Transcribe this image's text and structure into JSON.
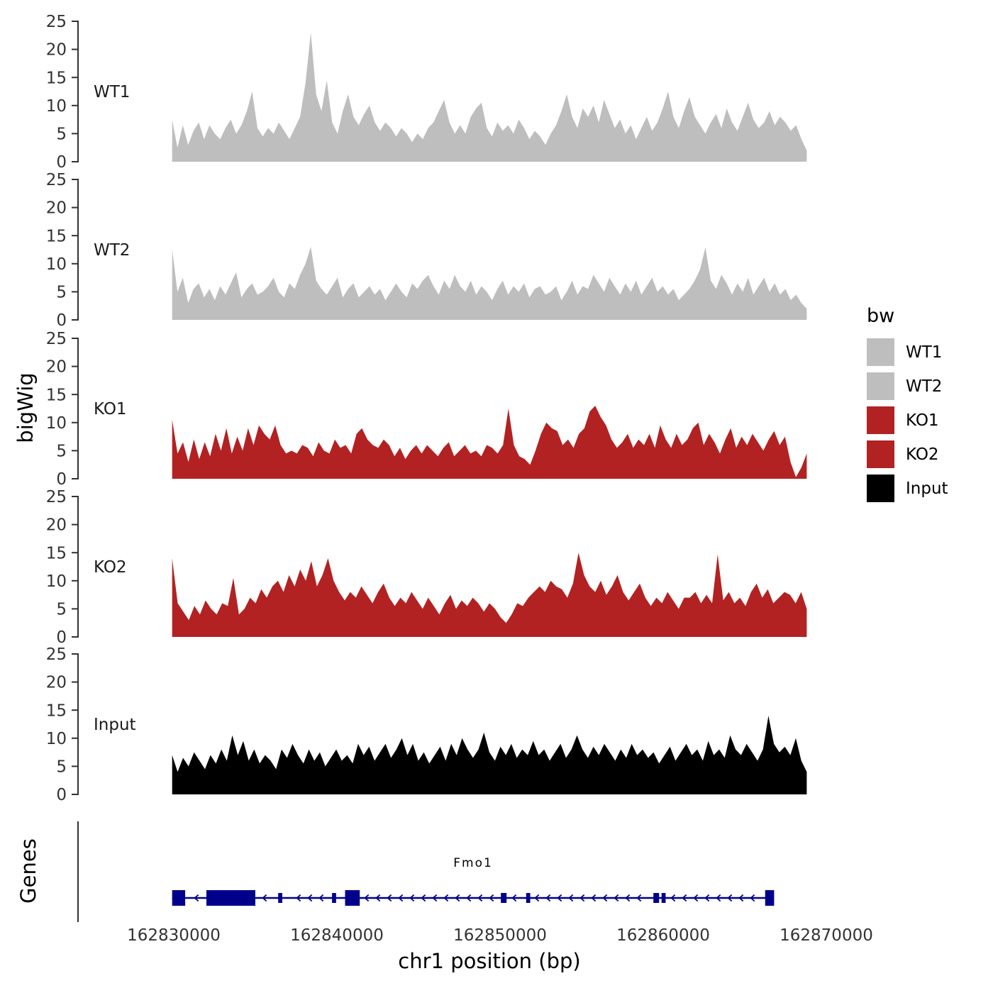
{
  "figure": {
    "ylab": "bigWig",
    "genes_label": "Genes"
  },
  "chart_data": {
    "type": "area",
    "title": "",
    "xlabel": "chr1 position (bp)",
    "ylabel": "bigWig",
    "ylim": [
      0,
      25
    ],
    "y_ticks": [
      0,
      5,
      10,
      15,
      20,
      25
    ],
    "x_ticks": [
      162830000,
      162840000,
      162850000,
      162860000,
      162870000
    ],
    "x_start": 162829900,
    "x_end": 162868800,
    "grid": false,
    "legend": {
      "title": "bw",
      "position": "right"
    },
    "axis_color": "#333333",
    "tracks": [
      {
        "name": "WT1",
        "color": "#BEBEBE",
        "values": [
          7.5,
          2.5,
          6.5,
          3,
          5.5,
          7,
          4,
          6.5,
          5,
          4,
          6,
          7.5,
          5,
          6.5,
          9,
          12.5,
          6,
          4.5,
          6,
          5,
          7,
          5.5,
          4,
          6,
          8,
          14,
          23,
          12,
          9,
          14.5,
          7,
          5,
          9,
          12,
          8,
          6.5,
          8.5,
          10,
          7,
          5.5,
          7,
          6,
          4.5,
          6,
          5,
          3.5,
          5,
          4,
          6,
          7,
          9,
          11,
          7,
          5,
          6.5,
          5,
          8,
          9.5,
          10.5,
          6,
          4.5,
          7,
          5.5,
          6.5,
          5,
          7.5,
          6,
          4,
          5.5,
          4.5,
          3,
          5,
          6.5,
          9,
          12,
          8,
          6,
          9.5,
          8,
          10,
          7,
          11,
          8.5,
          6,
          7.5,
          5,
          6.5,
          4,
          6,
          8,
          5.5,
          7,
          9.5,
          12.5,
          8,
          6,
          9,
          11.5,
          8,
          6.5,
          5,
          7,
          8.5,
          6,
          9.5,
          7,
          5.5,
          8,
          10.5,
          7.5,
          6,
          7,
          9,
          6.5,
          8,
          7,
          5.5,
          6.5,
          4,
          2
        ]
      },
      {
        "name": "WT2",
        "color": "#BEBEBE",
        "values": [
          12.5,
          5,
          7.5,
          3,
          5.5,
          6.5,
          4,
          5.5,
          3.5,
          6,
          4.5,
          6.5,
          8.5,
          4,
          5.5,
          6.5,
          4.5,
          5,
          6,
          7.5,
          5,
          4,
          6.5,
          5.5,
          8,
          10,
          13,
          7,
          5.5,
          4.5,
          6,
          7.5,
          4,
          5.5,
          6.5,
          4,
          5,
          6,
          4.5,
          5.5,
          3.5,
          5,
          6.5,
          5,
          4,
          6.5,
          5.5,
          7,
          8,
          6,
          4.5,
          7,
          5.5,
          8,
          6,
          5,
          7,
          4.5,
          6,
          5,
          3.5,
          5.5,
          7,
          4.5,
          6,
          5,
          6.5,
          4,
          5.5,
          6,
          4.5,
          5,
          6,
          3.5,
          5,
          7,
          4.5,
          6,
          5.5,
          8,
          6.5,
          5,
          7.5,
          6,
          4.5,
          6.5,
          5,
          7,
          4.5,
          6,
          7.5,
          5,
          6,
          4.5,
          5.5,
          3.5,
          4.5,
          5.5,
          7,
          9,
          12.9,
          7,
          5.5,
          8,
          6.5,
          4.5,
          6.5,
          5,
          7.5,
          4.5,
          6,
          7.5,
          5,
          6.5,
          4.5,
          5.5,
          3.5,
          4.5,
          3,
          2
        ]
      },
      {
        "name": "KO1",
        "color": "#B22222",
        "values": [
          10.5,
          4.5,
          6.5,
          3,
          7,
          3.5,
          6.5,
          4,
          8,
          5,
          9,
          4.5,
          7.5,
          5,
          9,
          6,
          9.5,
          8,
          7,
          9.5,
          6,
          4.5,
          5,
          4.5,
          6,
          5.5,
          4,
          6.5,
          5,
          4.5,
          7,
          5.5,
          6,
          4.5,
          8,
          9,
          7,
          6,
          5.5,
          7,
          6,
          4,
          5.5,
          3.5,
          5,
          6,
          4.5,
          6,
          5,
          4,
          5.5,
          6.5,
          4,
          5,
          6,
          4.5,
          5,
          4,
          6,
          5.5,
          4.5,
          6,
          12.5,
          6,
          4,
          3.5,
          2.5,
          5,
          8,
          10,
          9,
          8.5,
          6,
          7,
          5.5,
          8,
          9,
          12,
          13,
          11,
          9.5,
          7,
          5.5,
          6.5,
          8,
          5.5,
          7,
          6,
          8,
          5.5,
          9.5,
          7,
          5.5,
          8,
          6,
          7,
          9,
          10,
          6,
          8,
          6.5,
          4.5,
          7,
          9,
          5.5,
          7.5,
          6,
          8,
          6.5,
          5,
          7,
          8.5,
          6,
          7.5,
          3,
          0.3,
          2,
          4.5
        ]
      },
      {
        "name": "KO2",
        "color": "#B22222",
        "values": [
          14,
          6,
          4.5,
          3,
          5.5,
          4,
          6.5,
          5,
          4,
          6,
          5.5,
          10.5,
          4,
          5,
          7,
          6,
          8.5,
          7,
          9,
          10,
          8,
          11,
          9,
          12,
          10,
          13.5,
          9,
          11,
          14,
          10,
          8,
          6.5,
          8,
          7,
          9,
          7.5,
          6,
          8,
          9.5,
          7,
          5.5,
          7,
          6,
          8,
          6.5,
          5,
          7,
          5.5,
          4,
          6,
          7.5,
          5,
          6.5,
          5.5,
          7,
          6,
          4.5,
          6,
          5,
          3.5,
          2.5,
          4,
          6,
          5.5,
          7,
          8,
          9,
          8,
          10,
          9,
          8.5,
          7,
          9.5,
          15,
          11,
          9,
          8,
          10,
          7.5,
          9,
          11,
          8,
          6.5,
          8,
          9.5,
          7,
          5.5,
          7,
          6,
          8,
          6.5,
          5,
          7,
          7,
          8,
          6,
          7.5,
          6,
          14.7,
          6.5,
          8,
          6,
          7,
          5.5,
          8,
          9.5,
          7,
          8.5,
          6,
          7,
          8,
          7.5,
          6,
          8,
          5
        ]
      },
      {
        "name": "Input",
        "color": "#000000",
        "values": [
          7,
          4,
          6.5,
          5,
          7.5,
          6,
          4.5,
          7,
          5.5,
          8,
          6,
          10.5,
          7,
          9.5,
          6,
          8,
          5.5,
          7,
          6,
          4.5,
          8,
          6.5,
          9,
          7,
          5.5,
          8,
          6,
          7.5,
          5,
          6.5,
          8,
          6,
          7,
          5.5,
          9,
          7,
          8.5,
          6,
          7.5,
          9,
          6.5,
          8,
          10,
          7,
          9,
          6,
          7.5,
          5.5,
          7,
          8.5,
          6,
          9,
          7,
          10,
          8,
          6.5,
          8,
          11,
          7.5,
          6,
          8.5,
          7,
          9,
          6.5,
          8,
          7,
          9.5,
          7,
          8,
          6,
          7.5,
          9,
          6.5,
          8,
          10.5,
          8,
          6.5,
          8.5,
          7,
          9,
          7.5,
          6,
          8,
          6.5,
          9,
          7,
          8,
          6.5,
          7.5,
          5.5,
          7,
          8.5,
          6,
          7.5,
          9,
          7,
          8,
          6,
          9.5,
          7,
          8,
          6.5,
          10.5,
          8,
          7,
          9,
          7.5,
          6,
          8,
          14,
          9,
          7.5,
          8.5,
          7,
          10,
          6,
          4
        ]
      }
    ],
    "gene": {
      "name": "Fmo1",
      "chrom": "chr1",
      "strand": "-",
      "color": "#00008B",
      "start": 162829900,
      "end": 162866800,
      "exons": [
        [
          162829900,
          162830700
        ],
        [
          162832000,
          162835000
        ],
        [
          162836400,
          162836650
        ],
        [
          162839700,
          162839950
        ],
        [
          162840500,
          162841400
        ],
        [
          162850050,
          162850400
        ],
        [
          162851600,
          162851850
        ],
        [
          162859400,
          162859750
        ],
        [
          162859900,
          162860150
        ],
        [
          162866250,
          162866800
        ]
      ]
    }
  }
}
